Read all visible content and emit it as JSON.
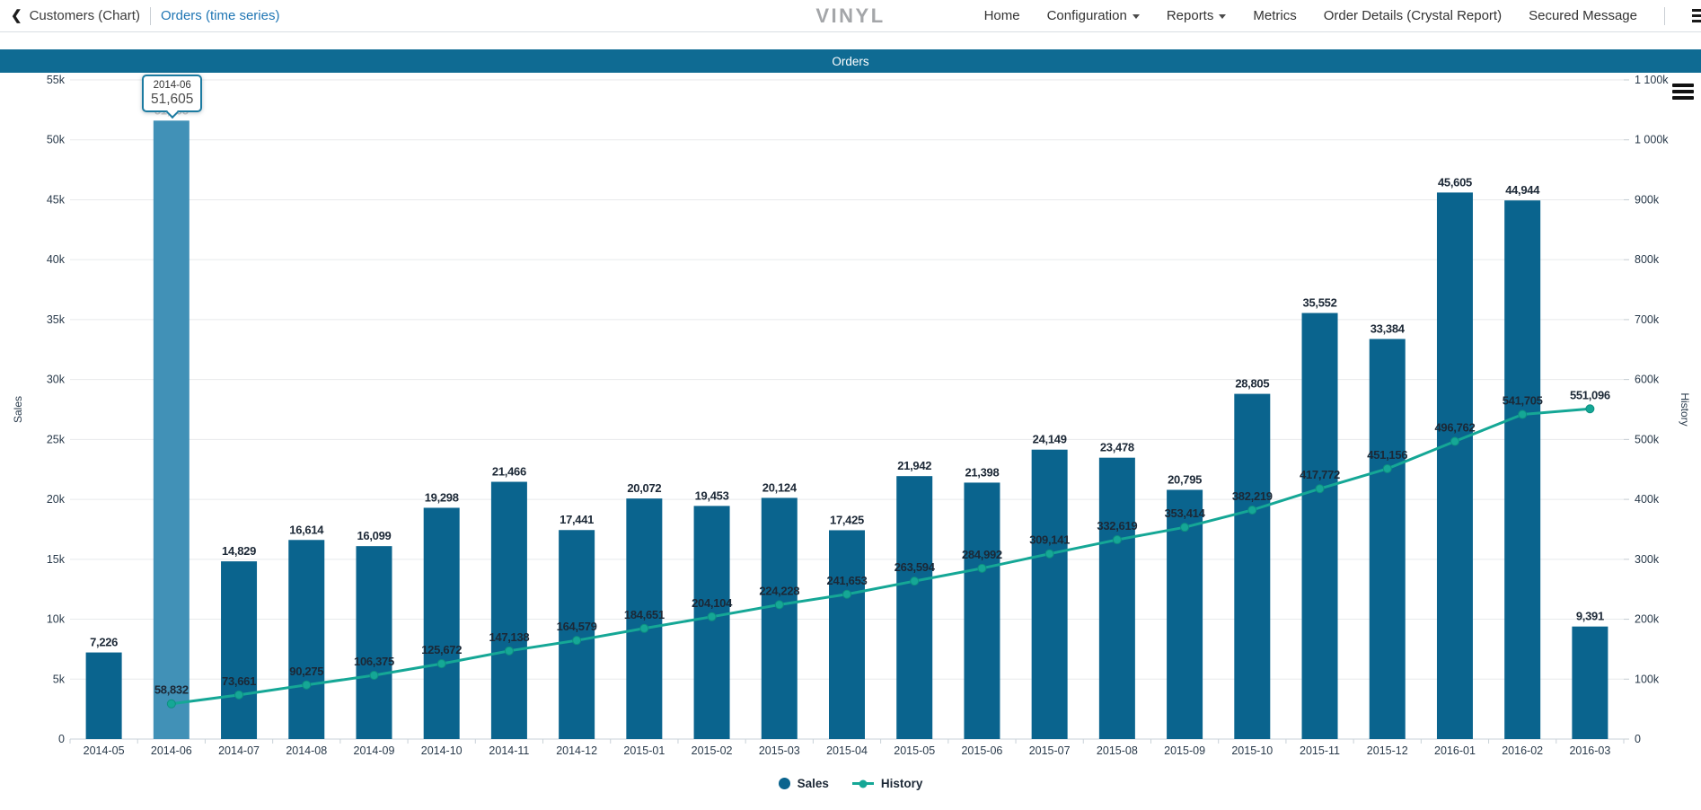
{
  "nav": {
    "back_label": "Customers (Chart)",
    "current_label": "Orders (time series)",
    "logo": "VINYL",
    "items": [
      {
        "label": "Home",
        "has_dropdown": false
      },
      {
        "label": "Configuration",
        "has_dropdown": true
      },
      {
        "label": "Reports",
        "has_dropdown": true
      },
      {
        "label": "Metrics",
        "has_dropdown": false
      },
      {
        "label": "Order Details (Crystal Report)",
        "has_dropdown": false
      },
      {
        "label": "Secured Message",
        "has_dropdown": false
      }
    ]
  },
  "panel": {
    "title": "Orders"
  },
  "tooltip": {
    "category": "2014-06",
    "value": "51,605"
  },
  "chart_data": {
    "type": "bar+line",
    "title": "Orders",
    "grid": "horizontal",
    "categories": [
      "2014-05",
      "2014-06",
      "2014-07",
      "2014-08",
      "2014-09",
      "2014-10",
      "2014-11",
      "2014-12",
      "2015-01",
      "2015-02",
      "2015-03",
      "2015-04",
      "2015-05",
      "2015-06",
      "2015-07",
      "2015-08",
      "2015-09",
      "2015-10",
      "2015-11",
      "2015-12",
      "2016-01",
      "2016-02",
      "2016-03"
    ],
    "series": [
      {
        "name": "Sales",
        "type": "bar",
        "axis": "left",
        "color": "#0a648e",
        "highlight_color": "#4191b7",
        "highlighted_index": 1,
        "highlighted_category": "2014-06",
        "values": [
          7226,
          51605,
          14829,
          16614,
          16099,
          19298,
          21466,
          17441,
          20072,
          19453,
          20124,
          17425,
          21942,
          21398,
          24149,
          23478,
          20795,
          28805,
          35552,
          33384,
          45605,
          44944,
          9391
        ]
      },
      {
        "name": "History",
        "type": "line",
        "axis": "right",
        "color": "#15a796",
        "marker": "circle",
        "marker_stroke": "#0d8f80",
        "start_category_index": 1,
        "values": [
          58832,
          73661,
          90275,
          106375,
          125672,
          147138,
          164579,
          184651,
          204104,
          224228,
          241653,
          263594,
          284992,
          309141,
          332619,
          353414,
          382219,
          417772,
          451156,
          496762,
          541705,
          551096
        ]
      }
    ],
    "left_axis": {
      "title": "Sales",
      "min": 0,
      "max": 55000,
      "tick_step": 5000,
      "tick_labels": [
        "0",
        "5k",
        "10k",
        "15k",
        "20k",
        "25k",
        "30k",
        "35k",
        "40k",
        "45k",
        "50k",
        "55k"
      ]
    },
    "right_axis": {
      "title": "History",
      "min": 0,
      "max": 1100000,
      "tick_step": 100000,
      "tick_labels": [
        "0",
        "100k",
        "200k",
        "300k",
        "400k",
        "500k",
        "600k",
        "700k",
        "800k",
        "900k",
        "1 000k",
        "1 100k"
      ]
    },
    "legend": {
      "position": "bottom",
      "items": [
        {
          "label": "Sales",
          "marker": "circle",
          "color": "#0a648e"
        },
        {
          "label": "History",
          "marker": "line-dot",
          "color": "#15a796"
        }
      ]
    }
  }
}
